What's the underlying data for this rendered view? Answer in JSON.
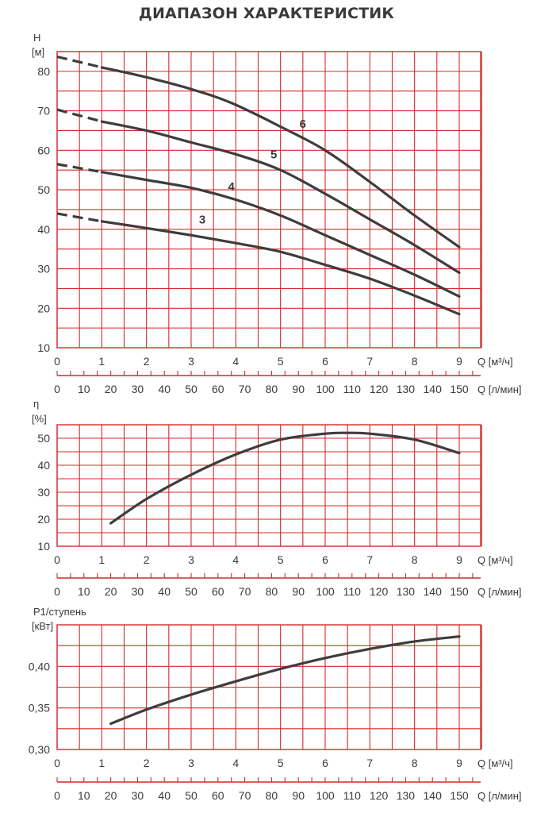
{
  "title": "ДИАПАЗОН ХАРАКТЕРИСТИК",
  "colors": {
    "grid": "#d42a2a",
    "curve": "#3d3d3d",
    "text": "#3a3a3a"
  },
  "chart_data": [
    {
      "type": "line",
      "ylabel": "H",
      "yunit": "[м]",
      "xlabel": "Q [м³/ч]",
      "x2label": "Q [л/мин]",
      "xlim": [
        0,
        9.5
      ],
      "ylim": [
        10,
        85
      ],
      "yticks": [
        10,
        20,
        30,
        40,
        50,
        60,
        70,
        80
      ],
      "xticks": [
        0,
        1,
        2,
        3,
        4,
        5,
        6,
        7,
        8,
        9
      ],
      "x2ticks": [
        0,
        10,
        20,
        30,
        40,
        50,
        60,
        70,
        80,
        90,
        100,
        110,
        120,
        130,
        140,
        150
      ],
      "series": [
        {
          "name": "3",
          "label_at": [
            3.25,
            41.5
          ],
          "dashed": [
            [
              0,
              44
            ],
            [
              1,
              42
            ]
          ],
          "points": [
            [
              1,
              42
            ],
            [
              2,
              40.3
            ],
            [
              3,
              38.5
            ],
            [
              4,
              36.5
            ],
            [
              5,
              34.3
            ],
            [
              6,
              31
            ],
            [
              7,
              27.5
            ],
            [
              8,
              23.2
            ],
            [
              9,
              18.5
            ]
          ]
        },
        {
          "name": "4",
          "label_at": [
            3.9,
            49.8
          ],
          "dashed": [
            [
              0,
              56.5
            ],
            [
              1,
              54.5
            ]
          ],
          "points": [
            [
              1,
              54.5
            ],
            [
              2,
              52.5
            ],
            [
              3,
              50.5
            ],
            [
              4,
              47.5
            ],
            [
              5,
              43.5
            ],
            [
              6,
              38.5
            ],
            [
              7,
              33.5
            ],
            [
              8,
              28.5
            ],
            [
              9,
              23
            ]
          ]
        },
        {
          "name": "5",
          "label_at": [
            4.85,
            58
          ],
          "dashed": [
            [
              0,
              70.3
            ],
            [
              1,
              67.3
            ]
          ],
          "points": [
            [
              1,
              67.3
            ],
            [
              2,
              65
            ],
            [
              3,
              62
            ],
            [
              4,
              59
            ],
            [
              5,
              55
            ],
            [
              6,
              49
            ],
            [
              7,
              42.5
            ],
            [
              8,
              36
            ],
            [
              9,
              29
            ]
          ]
        },
        {
          "name": "6",
          "label_at": [
            5.5,
            65.7
          ],
          "dashed": [
            [
              0,
              83.7
            ],
            [
              1,
              81
            ]
          ],
          "points": [
            [
              1,
              81
            ],
            [
              2,
              78.5
            ],
            [
              3,
              75.5
            ],
            [
              3.9,
              72
            ],
            [
              5,
              66
            ],
            [
              6,
              60
            ],
            [
              7,
              52
            ],
            [
              8,
              43.5
            ],
            [
              9,
              35.5
            ]
          ]
        }
      ]
    },
    {
      "type": "line",
      "ylabel": "η",
      "yunit": "[%]",
      "xlabel": "Q [м³/ч]",
      "x2label": "Q [л/мин]",
      "xlim": [
        0,
        9.5
      ],
      "ylim": [
        10,
        55
      ],
      "yticks": [
        10,
        20,
        30,
        40,
        50
      ],
      "xticks": [
        0,
        1,
        2,
        3,
        4,
        5,
        6,
        7,
        8,
        9
      ],
      "x2ticks": [
        0,
        10,
        20,
        30,
        40,
        50,
        60,
        70,
        80,
        90,
        100,
        110,
        120,
        130,
        140,
        150
      ],
      "series": [
        {
          "points": [
            [
              1.2,
              18.5
            ],
            [
              2,
              27.5
            ],
            [
              3,
              36.5
            ],
            [
              4,
              44
            ],
            [
              5,
              49.5
            ],
            [
              6,
              51.7
            ],
            [
              6.5,
              52
            ],
            [
              7,
              51.7
            ],
            [
              8,
              49.5
            ],
            [
              9,
              44.5
            ]
          ]
        }
      ]
    },
    {
      "type": "line",
      "ylabel": "P1/ступень",
      "yunit": "[кВт]",
      "xlabel": "Q [м³/ч]",
      "x2label": "Q [л/мин]",
      "xlim": [
        0,
        9.5
      ],
      "ylim": [
        0.3,
        0.45
      ],
      "yticks": [
        0.3,
        0.35,
        0.4
      ],
      "ytick_labels": [
        "0,30",
        "0,35",
        "0,40"
      ],
      "xticks": [
        0,
        1,
        2,
        3,
        4,
        5,
        6,
        7,
        8,
        9
      ],
      "x2ticks": [
        0,
        10,
        20,
        30,
        40,
        50,
        60,
        70,
        80,
        90,
        100,
        110,
        120,
        130,
        140,
        150
      ],
      "series": [
        {
          "points": [
            [
              1.2,
              0.331
            ],
            [
              2,
              0.348
            ],
            [
              3,
              0.366
            ],
            [
              4,
              0.382
            ],
            [
              5,
              0.397
            ],
            [
              6,
              0.41
            ],
            [
              7,
              0.421
            ],
            [
              8,
              0.43
            ],
            [
              9,
              0.436
            ]
          ]
        }
      ]
    }
  ]
}
